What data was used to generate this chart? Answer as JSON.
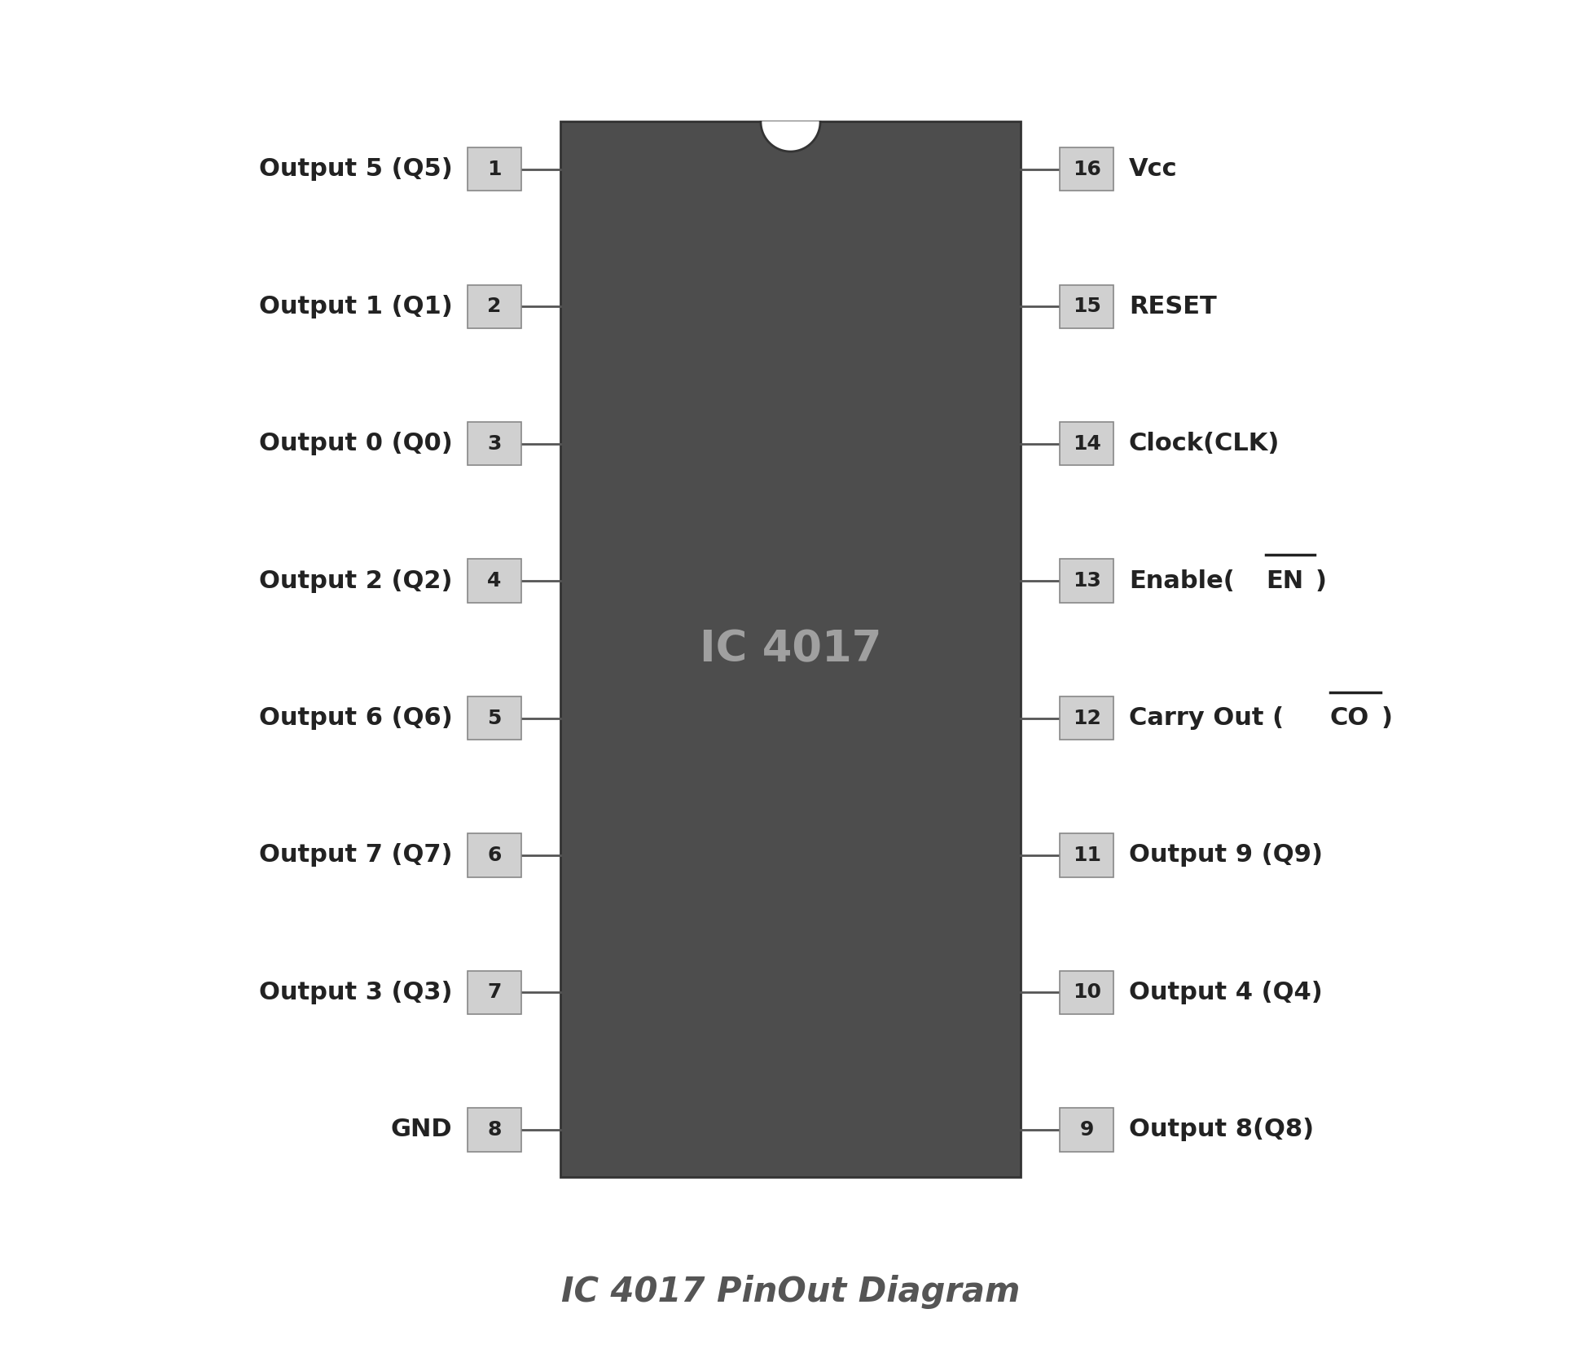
{
  "title": "IC 4017 PinOut Diagram",
  "ic_label": "IC 4017",
  "ic_color": "#4d4d4d",
  "ic_text_color": "#a0a0a0",
  "background_color": "#ffffff",
  "pin_box_color": "#d0d0d0",
  "pin_box_edge": "#888888",
  "pin_text_color": "#222222",
  "label_text_color": "#222222",
  "title_color": "#555555",
  "left_pins": [
    {
      "num": 1,
      "label": "Output 5 (Q5)"
    },
    {
      "num": 2,
      "label": "Output 1 (Q1)"
    },
    {
      "num": 3,
      "label": "Output 0 (Q0)"
    },
    {
      "num": 4,
      "label": "Output 2 (Q2)"
    },
    {
      "num": 5,
      "label": "Output 6 (Q6)"
    },
    {
      "num": 6,
      "label": "Output 7 (Q7)"
    },
    {
      "num": 7,
      "label": "Output 3 (Q3)"
    },
    {
      "num": 8,
      "label": "GND"
    }
  ],
  "right_pins": [
    {
      "num": 16,
      "label": "Vcc",
      "overline": null
    },
    {
      "num": 15,
      "label": "RESET",
      "overline": null
    },
    {
      "num": 14,
      "label": "Clock(CLK)",
      "overline": null
    },
    {
      "num": 13,
      "label_parts": [
        "Enable(",
        "EN",
        ")"
      ],
      "overline": "EN"
    },
    {
      "num": 12,
      "label_parts": [
        "Carry Out (",
        "CO",
        ")"
      ],
      "overline": "CO"
    },
    {
      "num": 11,
      "label": "Output 9 (Q9)",
      "overline": null
    },
    {
      "num": 10,
      "label": "Output 4 (Q4)",
      "overline": null
    },
    {
      "num": 9,
      "label": "Output 8(Q8)",
      "overline": null
    }
  ]
}
